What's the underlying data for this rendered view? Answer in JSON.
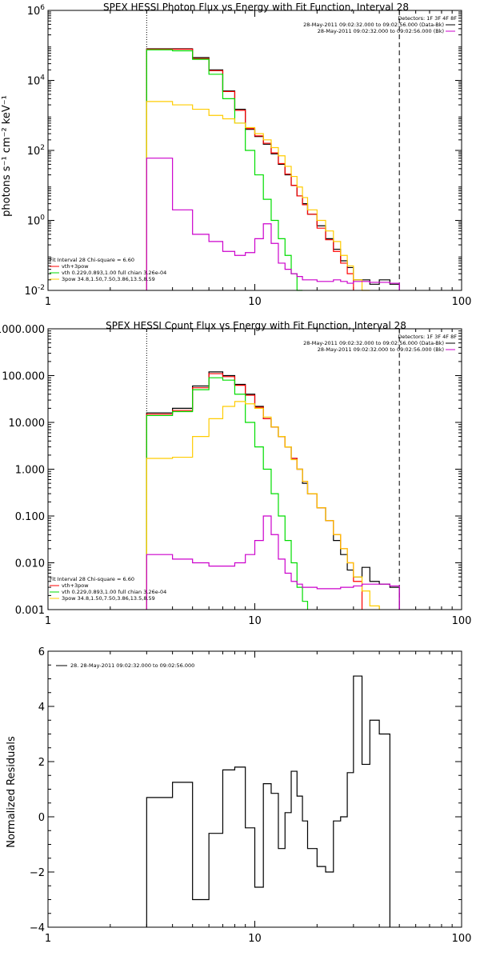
{
  "chart_data": [
    {
      "type": "line",
      "title": "SPEX HESSI Photon Flux vs Energy with Fit Function, Interval 28",
      "ylabel": "photons s⁻¹ cm⁻² keV⁻¹",
      "xlim": [
        1,
        100
      ],
      "ylim": [
        0.01,
        1000000
      ],
      "xscale": "log",
      "yscale": "log",
      "x_ticks": [
        "1",
        "10",
        "100"
      ],
      "y_ticks": [
        {
          "base": "10",
          "exp": "-2",
          "value": 0.01
        },
        {
          "base": "10",
          "exp": "0",
          "value": 1
        },
        {
          "base": "10",
          "exp": "2",
          "value": 100
        },
        {
          "base": "10",
          "exp": "4",
          "value": 10000
        },
        {
          "base": "10",
          "exp": "6",
          "value": 1000000
        }
      ],
      "legend_top": {
        "header": "Detectors: 1F 3F 4F 8F",
        "lines": [
          {
            "text": "28-May-2011 09:02:32.000 to 09:02:56.000 (Data-Bk)",
            "color": "#000000"
          },
          {
            "text": "28-May-2011 09:02:32.000 to 09:02:56.000 (Bk)",
            "color": "#cc00cc"
          }
        ]
      },
      "legend_bottom": {
        "header": "Fit Interval 28   Chi-square = 6.60",
        "lines": [
          {
            "text": "vth+3pow",
            "color": "#ff0000"
          },
          {
            "text": "vth 0.229,0.893,1.00  full chian 3.26e-04",
            "color": "#00dd00"
          },
          {
            "text": "3pow 34.8,1.50,7.50,3.86,13.5,8.59",
            "color": "#ffcc00"
          }
        ]
      },
      "vlines": [
        {
          "x": 3.0,
          "style": "dotted"
        },
        {
          "x": 50.0,
          "style": "dashed"
        }
      ],
      "edges": [
        3,
        4,
        5,
        6,
        7,
        8,
        9,
        10,
        11,
        12,
        13,
        14,
        15,
        16,
        17,
        18,
        20,
        22,
        24,
        26,
        28,
        30,
        33,
        36,
        40,
        45,
        50
      ],
      "series": [
        {
          "name": "Data-Bk",
          "color": "#000000",
          "values": [
            80000,
            80000,
            45000,
            20000,
            5000,
            1500,
            400,
            250,
            150,
            80,
            40,
            20,
            10,
            5,
            3,
            1.5,
            0.7,
            0.3,
            0.15,
            0.07,
            0.045,
            0.02,
            0.02,
            0.015,
            0.02,
            0.015
          ]
        },
        {
          "name": "vth+3pow",
          "color": "#ff0000",
          "values": [
            78000,
            78000,
            42000,
            19000,
            4800,
            1400,
            420,
            260,
            160,
            85,
            42,
            21,
            10,
            5,
            2.8,
            1.5,
            0.6,
            0.28,
            0.13,
            0.06,
            0.03
          ]
        },
        {
          "name": "vth",
          "color": "#00dd00",
          "values": [
            75000,
            70000,
            40000,
            15000,
            3000,
            600,
            100,
            20,
            4,
            1,
            0.3,
            0.1,
            0.03,
            0.01
          ]
        },
        {
          "name": "3pow",
          "color": "#ffcc00",
          "values": [
            2500,
            2000,
            1500,
            1000,
            800,
            600,
            450,
            300,
            200,
            120,
            70,
            35,
            18,
            9,
            4.5,
            2,
            1,
            0.5,
            0.25,
            0.1,
            0.05,
            0.02,
            0.01
          ]
        },
        {
          "name": "Bk",
          "color": "#cc00cc",
          "values": [
            60,
            2,
            0.4,
            0.25,
            0.13,
            0.1,
            0.12,
            0.3,
            0.8,
            0.22,
            0.06,
            0.04,
            0.03,
            0.025,
            0.02,
            0.02,
            0.018,
            0.018,
            0.02,
            0.018,
            0.016,
            0.018,
            0.018,
            0.017,
            0.017,
            0.016
          ]
        }
      ]
    },
    {
      "type": "line",
      "title": "SPEX HESSI Count Flux vs Energy with Fit Function, Interval 28",
      "ylabel": "",
      "xlim": [
        1,
        100
      ],
      "ylim": [
        0.001,
        1000
      ],
      "xscale": "log",
      "yscale": "log",
      "x_ticks": [
        "1",
        "10",
        "100"
      ],
      "y_ticks": [
        {
          "label": "0.001",
          "value": 0.001
        },
        {
          "label": "0.010",
          "value": 0.01
        },
        {
          "label": "0.100",
          "value": 0.1
        },
        {
          "label": "1.000",
          "value": 1
        },
        {
          "label": "10.000",
          "value": 10
        },
        {
          "label": "100.000",
          "value": 100
        },
        {
          "label": "1000.000",
          "value": 1000
        }
      ],
      "legend_top": {
        "header": "Detectors: 1F 3F 4F 8F",
        "lines": [
          {
            "text": "28-May-2011 09:02:32.000 to 09:02:56.000 (Data-Bk)",
            "color": "#000000"
          },
          {
            "text": "28-May-2011 09:02:32.000 to 09:02:56.000 (Bk)",
            "color": "#cc00cc"
          }
        ]
      },
      "legend_bottom": {
        "header": "Fit Interval 28   Chi-square = 6.60",
        "lines": [
          {
            "text": "vth+3pow",
            "color": "#ff0000"
          },
          {
            "text": "vth 0.229,0.893,1.00  full chian 3.26e-04",
            "color": "#00dd00"
          },
          {
            "text": "3pow 34.8,1.50,7.50,3.86,13.5,8.59",
            "color": "#ffcc00"
          }
        ]
      },
      "vlines": [
        {
          "x": 3.0,
          "style": "dotted"
        },
        {
          "x": 50.0,
          "style": "dashed"
        }
      ],
      "edges": [
        3,
        4,
        5,
        6,
        7,
        8,
        9,
        10,
        11,
        12,
        13,
        14,
        15,
        16,
        17,
        18,
        20,
        22,
        24,
        26,
        28,
        30,
        33,
        36,
        40,
        45,
        50
      ],
      "series": [
        {
          "name": "Data-Bk",
          "color": "#000000",
          "values": [
            16,
            20,
            60,
            120,
            100,
            65,
            40,
            22,
            12,
            8,
            5,
            3,
            1.7,
            1,
            0.5,
            0.3,
            0.15,
            0.08,
            0.03,
            0.015,
            0.007,
            0.005,
            0.008,
            0.004,
            0.0035,
            0.003
          ]
        },
        {
          "name": "vth+3pow",
          "color": "#ff0000",
          "values": [
            15,
            18,
            55,
            110,
            95,
            62,
            38,
            21,
            12,
            8,
            5,
            3,
            1.7,
            1,
            0.55,
            0.3,
            0.15,
            0.08,
            0.04,
            0.02,
            0.01,
            0.004
          ]
        },
        {
          "name": "vth",
          "color": "#00dd00",
          "values": [
            14,
            17,
            50,
            90,
            80,
            40,
            10,
            3,
            1,
            0.3,
            0.1,
            0.03,
            0.01,
            0.003,
            0.0015
          ]
        },
        {
          "name": "3pow",
          "color": "#ffcc00",
          "values": [
            1.7,
            1.8,
            5,
            12,
            22,
            28,
            25,
            20,
            13,
            8,
            5,
            3,
            1.6,
            1,
            0.55,
            0.3,
            0.15,
            0.08,
            0.04,
            0.02,
            0.01,
            0.005,
            0.0025,
            0.0012
          ]
        },
        {
          "name": "Bk",
          "color": "#cc00cc",
          "values": [
            0.015,
            0.012,
            0.01,
            0.0085,
            0.0085,
            0.01,
            0.015,
            0.03,
            0.1,
            0.04,
            0.012,
            0.006,
            0.004,
            0.0035,
            0.003,
            0.003,
            0.0028,
            0.0028,
            0.0028,
            0.003,
            0.003,
            0.0032,
            0.0035,
            0.0035,
            0.0035,
            0.0032
          ]
        }
      ]
    },
    {
      "type": "line",
      "title": "",
      "ylabel": "Normalized Residuals",
      "xlim": [
        1,
        100
      ],
      "ylim": [
        -4,
        6
      ],
      "xscale": "log",
      "yscale": "linear",
      "x_ticks": [
        "1",
        "10",
        "100"
      ],
      "y_ticks": [
        {
          "label": "−4",
          "value": -4
        },
        {
          "label": "−2",
          "value": -2
        },
        {
          "label": "0",
          "value": 0
        },
        {
          "label": "2",
          "value": 2
        },
        {
          "label": "4",
          "value": 4
        },
        {
          "label": "6",
          "value": 6
        }
      ],
      "legend_top": {
        "header": "",
        "lines": [
          {
            "text": "28. 28-May-2011 09:02:32.000 to 09:02:56.000",
            "color": "#000000"
          }
        ]
      },
      "edges": [
        3,
        4,
        5,
        6,
        7,
        8,
        9,
        10,
        11,
        12,
        13,
        14,
        15,
        16,
        17,
        18,
        20,
        22,
        24,
        26,
        28,
        30,
        33,
        36,
        40,
        45,
        50
      ],
      "series": [
        {
          "name": "28",
          "color": "#000000",
          "values": [
            0.7,
            1.25,
            -3.0,
            -0.6,
            1.7,
            1.8,
            -0.4,
            -2.55,
            1.2,
            0.85,
            -1.15,
            0.15,
            1.65,
            0.75,
            -0.15,
            -1.15,
            -1.8,
            -2.0,
            -0.15,
            0.0,
            1.6,
            5.1,
            1.9,
            3.5,
            3.0
          ]
        }
      ]
    }
  ]
}
